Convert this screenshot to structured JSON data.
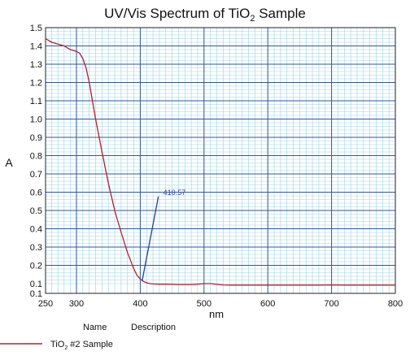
{
  "chart_data": {
    "type": "line",
    "title_main": "UV/Vis Spectrum of TiO",
    "title_sub": "2",
    "title_tail": " Sample",
    "xlabel": "nm",
    "ylabel": "A",
    "xlim": [
      250,
      800
    ],
    "ylim": [
      0.1,
      1.5
    ],
    "x_ticks": [
      "250",
      "300",
      "400",
      "500",
      "600",
      "700",
      "800"
    ],
    "y_ticks": [
      "0.1",
      "0.1",
      "0.2",
      "0.3",
      "0.4",
      "0.5",
      "0.6",
      "0.7",
      "0.8",
      "0.9",
      "1.0",
      "1.1",
      "1.2",
      "1.3",
      "1.4",
      "1.5"
    ],
    "grid": true,
    "series": [
      {
        "name_main": "TiO",
        "name_sub": "2",
        "name_tail": " #2 Sample",
        "color": "#b0202a",
        "x": [
          250,
          255,
          260,
          270,
          280,
          290,
          300,
          305,
          310,
          315,
          320,
          325,
          330,
          340,
          350,
          360,
          370,
          380,
          390,
          395,
          400,
          405,
          410,
          415,
          420,
          430,
          440,
          450,
          460,
          470,
          480,
          490,
          500,
          510,
          520,
          530,
          540,
          560,
          600,
          650,
          680,
          700,
          720,
          760,
          800
        ],
        "y": [
          1.44,
          1.43,
          1.42,
          1.41,
          1.4,
          1.38,
          1.37,
          1.36,
          1.33,
          1.28,
          1.2,
          1.1,
          1.0,
          0.82,
          0.65,
          0.5,
          0.38,
          0.27,
          0.18,
          0.145,
          0.125,
          0.112,
          0.105,
          0.1,
          0.098,
          0.097,
          0.097,
          0.096,
          0.095,
          0.095,
          0.095,
          0.097,
          0.1,
          0.1,
          0.096,
          0.093,
          0.092,
          0.092,
          0.092,
          0.092,
          0.092,
          0.093,
          0.092,
          0.092,
          0.092
        ]
      }
    ],
    "annotation": {
      "text": "410.57",
      "x": 410.57,
      "y": 0.105
    }
  },
  "legend": {
    "col_name": "Name",
    "col_description": "Description"
  },
  "colors": {
    "major_grid": "#2e55a3",
    "minor_grid": "#9bd3e8",
    "axis_text": "#111111",
    "annotation": "#253f8c"
  }
}
